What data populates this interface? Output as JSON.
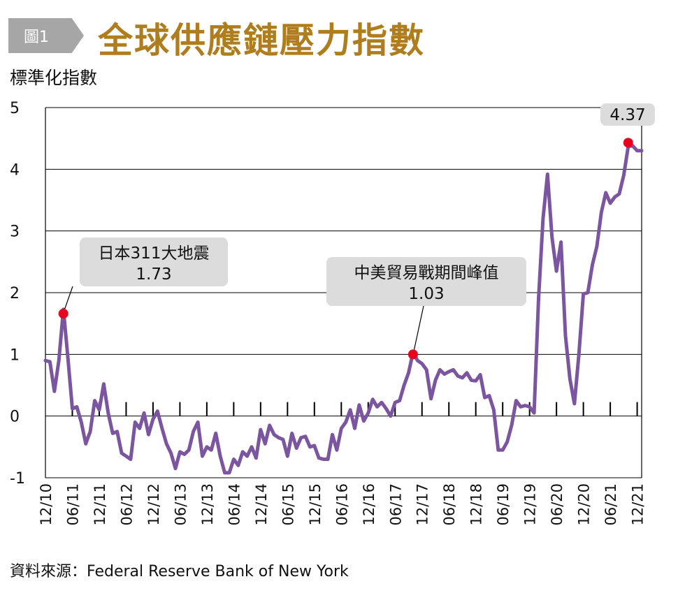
{
  "header": {
    "figure_tag": "圖1",
    "title": "全球供應鏈壓力指數"
  },
  "source": "資料來源：Federal Reserve Bank of New York",
  "chart_data": {
    "type": "line",
    "title": "全球供應鏈壓力指數",
    "ylabel": "標準化指數",
    "xlabel": "",
    "ylim": [
      -1,
      5
    ],
    "yticks": [
      "5",
      "4",
      "3",
      "2",
      "1",
      "0",
      "-1"
    ],
    "xtick_labels": [
      "12/10",
      "06/11",
      "12/11",
      "06/12",
      "12/12",
      "06/13",
      "12/13",
      "06/14",
      "12/14",
      "06/15",
      "12/15",
      "06/16",
      "12/16",
      "06/17",
      "12/17",
      "06/18",
      "12/18",
      "06/19",
      "12/19",
      "06/20",
      "12/20",
      "06/21",
      "12/21"
    ],
    "grid": "horizontal",
    "colors": {
      "line": "#7b559f",
      "marker": "#e8001c",
      "callout_bg": "#dcdcdc"
    },
    "series": [
      {
        "name": "全球供應鏈壓力指數",
        "x_months": [
          0,
          1,
          2,
          3,
          4,
          5,
          6,
          7,
          8,
          9,
          10,
          11,
          12,
          13,
          14,
          15,
          16,
          17,
          18,
          19,
          20,
          21,
          22,
          23,
          24,
          25,
          26,
          27,
          28,
          29,
          30,
          31,
          32,
          33,
          34,
          35,
          36,
          37,
          38,
          39,
          40,
          41,
          42,
          43,
          44,
          45,
          46,
          47,
          48,
          49,
          50,
          51,
          52,
          53,
          54,
          55,
          56,
          57,
          58,
          59,
          60,
          61,
          62,
          63,
          64,
          65,
          66,
          67,
          68,
          69,
          70,
          71,
          72,
          73,
          74,
          75,
          76,
          77,
          78,
          79,
          80,
          81,
          82,
          83,
          84,
          85,
          86,
          87,
          88,
          89,
          90,
          91,
          92,
          93,
          94,
          95,
          96,
          97,
          98,
          99,
          100,
          101,
          102,
          103,
          104,
          105,
          106,
          107,
          108,
          109,
          110,
          111,
          112,
          113,
          114,
          115,
          116,
          117,
          118,
          119,
          120,
          121,
          122,
          123,
          124,
          125,
          126,
          127,
          128,
          129,
          130,
          131,
          132,
          133
        ],
        "values": [
          0.9,
          0.88,
          0.4,
          0.9,
          1.73,
          0.95,
          0.12,
          0.15,
          -0.1,
          -0.45,
          -0.25,
          0.25,
          0.1,
          0.52,
          0.05,
          -0.28,
          -0.25,
          -0.6,
          -0.65,
          -0.7,
          -0.1,
          -0.2,
          0.05,
          -0.3,
          -0.05,
          0.08,
          -0.2,
          -0.45,
          -0.6,
          -0.85,
          -0.58,
          -0.62,
          -0.55,
          -0.25,
          -0.1,
          -0.65,
          -0.5,
          -0.55,
          -0.28,
          -0.65,
          -0.92,
          -0.92,
          -0.7,
          -0.8,
          -0.58,
          -0.65,
          -0.5,
          -0.68,
          -0.22,
          -0.45,
          -0.15,
          -0.3,
          -0.35,
          -0.38,
          -0.65,
          -0.28,
          -0.52,
          -0.35,
          -0.33,
          -0.5,
          -0.48,
          -0.68,
          -0.7,
          -0.7,
          -0.3,
          -0.55,
          -0.2,
          -0.1,
          0.1,
          -0.2,
          0.18,
          -0.08,
          0.05,
          0.27,
          0.15,
          0.22,
          0.12,
          0.0,
          0.22,
          0.25,
          0.5,
          0.7,
          1.03,
          0.9,
          0.85,
          0.75,
          0.28,
          0.58,
          0.75,
          0.68,
          0.72,
          0.75,
          0.65,
          0.62,
          0.7,
          0.58,
          0.57,
          0.67,
          0.3,
          0.33,
          0.1,
          -0.55,
          -0.55,
          -0.42,
          -0.15,
          0.25,
          0.15,
          0.17,
          0.15,
          0.05,
          1.9,
          3.2,
          3.92,
          2.9,
          2.35,
          2.82,
          1.3,
          0.6,
          0.2,
          1.0,
          1.98,
          2.0,
          2.45,
          2.75,
          3.3,
          3.62,
          3.45,
          3.55,
          3.6,
          3.9,
          4.37,
          4.38,
          4.3,
          4.3
        ]
      }
    ],
    "annotations": [
      {
        "label": "日本311大地震",
        "value_text": "1.73",
        "x_month": 4,
        "y": 1.66
      },
      {
        "label": "中美貿易戰期間峰值",
        "value_text": "1.03",
        "x_month": 82,
        "y": 1.0
      },
      {
        "label": "",
        "value_text": "4.37",
        "x_month": 130,
        "y": 4.43
      }
    ]
  }
}
